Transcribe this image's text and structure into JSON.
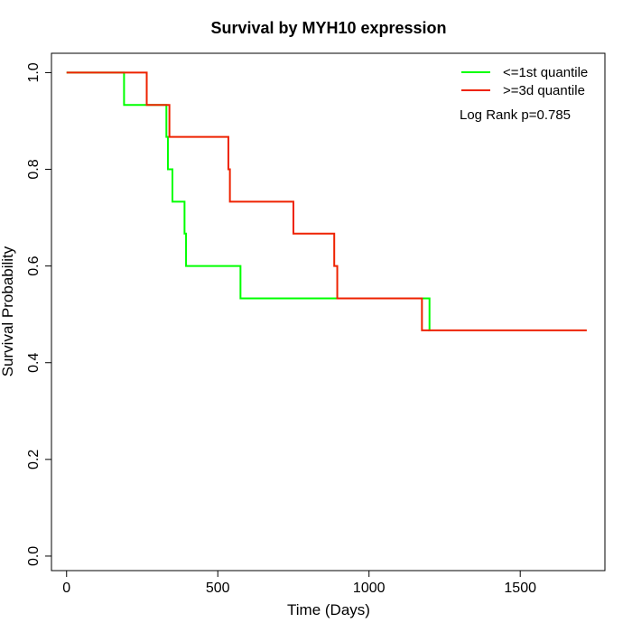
{
  "chart_data": {
    "type": "line",
    "step": true,
    "title": "Survival by MYH10 expression",
    "xlabel": "Time (Days)",
    "ylabel": "Survival Probability",
    "xlim": [
      -50,
      1780
    ],
    "ylim": [
      -0.03,
      1.04
    ],
    "xticks": [
      0,
      500,
      1000,
      1500
    ],
    "yticks": [
      0.0,
      0.2,
      0.4,
      0.6,
      0.8,
      1.0
    ],
    "xtick_labels": [
      "0",
      "500",
      "1000",
      "1500"
    ],
    "ytick_labels": [
      "0.0",
      "0.2",
      "0.4",
      "0.6",
      "0.8",
      "1.0"
    ],
    "grid": false,
    "legend_position": "top-right",
    "annotation": "Log Rank p=0.785",
    "series": [
      {
        "name": "<=1st quantile",
        "color": "#00ff00",
        "x": [
          0,
          190,
          330,
          335,
          350,
          390,
          395,
          575,
          1195,
          1200
        ],
        "y": [
          1.0,
          0.933,
          0.867,
          0.8,
          0.733,
          0.667,
          0.6,
          0.533,
          0.533,
          0.467
        ],
        "end_x": 1195
      },
      {
        "name": ">=3d quantile",
        "color": "#ee2200",
        "x": [
          0,
          265,
          340,
          535,
          540,
          750,
          885,
          895,
          1170,
          1175
        ],
        "y": [
          1.0,
          0.933,
          0.867,
          0.8,
          0.733,
          0.667,
          0.6,
          0.533,
          0.533,
          0.467
        ],
        "end_x": 1720
      }
    ]
  }
}
